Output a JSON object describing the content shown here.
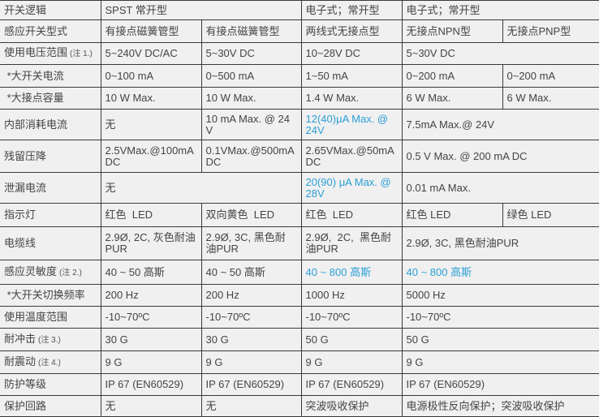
{
  "colors": {
    "text": "#444444",
    "link_blue": "#2b9fd6",
    "cell_bg": "#f0f0f0",
    "border": "#3a3a3a"
  },
  "rows": [
    {
      "label": "开关逻辑",
      "note": "",
      "cells": [
        {
          "text": "SPST 常开型",
          "span": 2
        },
        {
          "text": "电子式；常开型"
        },
        {
          "text": "电子式；常开型",
          "span": 2
        }
      ]
    },
    {
      "label": "感应开关型式",
      "note": "",
      "cells": [
        {
          "text": "有接点磁簧管型"
        },
        {
          "text": "有接点磁簧管型"
        },
        {
          "text": "两线式无接点型"
        },
        {
          "text": "无接点NPN型"
        },
        {
          "text": "无接点PNP型"
        }
      ]
    },
    {
      "label": "使用电压范围",
      "note": "(注 1.)",
      "cells": [
        {
          "text": "5~240V DC/AC"
        },
        {
          "text": "5~30V DC"
        },
        {
          "text": "10~28V DC"
        },
        {
          "text": "5~30V DC",
          "span": 2
        }
      ]
    },
    {
      "label": " *大开关电流",
      "note": "",
      "cells": [
        {
          "text": "0~100 mA"
        },
        {
          "text": "0~500 mA"
        },
        {
          "text": "1~50 mA"
        },
        {
          "text": "0~200 mA"
        },
        {
          "text": "0~200 mA"
        }
      ]
    },
    {
      "label": " *大接点容量",
      "note": "",
      "cells": [
        {
          "text": "10 W Max."
        },
        {
          "text": "10 W Max."
        },
        {
          "text": "1.4 W Max."
        },
        {
          "text": "6 W Max."
        },
        {
          "text": "6 W Max."
        }
      ]
    },
    {
      "label": "内部消耗电流",
      "note": "",
      "cells": [
        {
          "text": "无"
        },
        {
          "text": "10 mA Max. @ 24V"
        },
        {
          "text": "12(40)μA Max. @ 24V",
          "blue": true
        },
        {
          "text": "7.5mA Max.@ 24V",
          "span": 2
        }
      ]
    },
    {
      "label": "残留压降",
      "note": "",
      "cells": [
        {
          "text": "2.5VMax.@100mA DC"
        },
        {
          "text": "0.1VMax.@500mA DC"
        },
        {
          "text": "2.65VMax.@50mA DC"
        },
        {
          "text": "0.5 V Max. @ 200 mA DC",
          "span": 2
        }
      ]
    },
    {
      "label": "泄漏电流",
      "note": "",
      "cells": [
        {
          "text": "无",
          "span": 2
        },
        {
          "text": "20(90) μA Max. @ 28V",
          "blue": true
        },
        {
          "text": "0.01 mA Max.",
          "span": 2
        }
      ]
    },
    {
      "label": "指示灯",
      "note": "",
      "cells": [
        {
          "text": "红色  LED"
        },
        {
          "text": "双向黄色  LED"
        },
        {
          "text": "红色  LED"
        },
        {
          "text": "红色 LED"
        },
        {
          "text": "绿色 LED"
        }
      ]
    },
    {
      "label": "电缆线",
      "note": "",
      "cells": [
        {
          "text": "2.9Ø, 2C, 灰色耐油PUR"
        },
        {
          "text": "2.9Ø, 3C, 黑色耐油PUR"
        },
        {
          "text": "2.9Ø,  2C,  黑色耐油PUR"
        },
        {
          "text": "2.9Ø, 3C, 黑色耐油PUR",
          "span": 2
        }
      ]
    },
    {
      "label": "感应灵敏度",
      "note": "(注 2.)",
      "cells": [
        {
          "text": "40 ~ 50 高斯"
        },
        {
          "text": "40 ~ 50 高斯"
        },
        {
          "text": "40 ~ 800 高斯",
          "blue": true
        },
        {
          "text": "40 ~ 800 高斯",
          "blue": true,
          "span": 2
        }
      ]
    },
    {
      "label": " *大开关切换频率",
      "note": "",
      "cells": [
        {
          "text": "200 Hz"
        },
        {
          "text": "200 Hz"
        },
        {
          "text": "1000 Hz"
        },
        {
          "text": "5000 Hz",
          "span": 2
        }
      ]
    },
    {
      "label": "使用温度范围",
      "note": "",
      "cells": [
        {
          "text": "-10~70ºC"
        },
        {
          "text": "-10~70ºC"
        },
        {
          "text": "-10~70ºC"
        },
        {
          "text": "-10~70ºC",
          "span": 2
        }
      ]
    },
    {
      "label": "耐冲击",
      "note": "(注 3.)",
      "cells": [
        {
          "text": "30 G"
        },
        {
          "text": "30 G"
        },
        {
          "text": "50 G"
        },
        {
          "text": "50 G",
          "span": 2
        }
      ]
    },
    {
      "label": "耐震动",
      "note": "(注 4.)",
      "cells": [
        {
          "text": "9 G"
        },
        {
          "text": "9 G"
        },
        {
          "text": "9 G"
        },
        {
          "text": "9 G",
          "span": 2
        }
      ]
    },
    {
      "label": "防护等级",
      "note": "",
      "cells": [
        {
          "text": "IP 67 (EN60529)"
        },
        {
          "text": "IP 67 (EN60529)"
        },
        {
          "text": "IP 67 (EN60529)"
        },
        {
          "text": "IP 67 (EN60529)",
          "span": 2
        }
      ]
    },
    {
      "label": "保护回路",
      "note": "",
      "cells": [
        {
          "text": "无"
        },
        {
          "text": "无"
        },
        {
          "text": "突波吸收保护"
        },
        {
          "text": "电源极性反向保护；突波吸收保护",
          "span": 2
        }
      ]
    }
  ]
}
